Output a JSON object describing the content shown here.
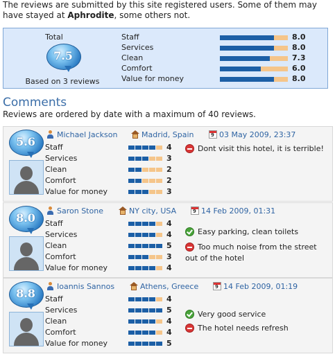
{
  "intro": {
    "text_before": "The reviews are submitted by this site registered users. Some of them may have stayed at ",
    "hotel": "Aphrodite",
    "text_after": ", some others not."
  },
  "summary": {
    "total_label": "Total",
    "total_score": "7.5",
    "based_on": "Based on 3 reviews",
    "criteria": [
      {
        "label": "Staff",
        "value": "8.0",
        "ratio": 0.8
      },
      {
        "label": "Services",
        "value": "8.0",
        "ratio": 0.8
      },
      {
        "label": "Clean",
        "value": "7.3",
        "ratio": 0.73
      },
      {
        "label": "Comfort",
        "value": "6.0",
        "ratio": 0.6
      },
      {
        "label": "Value for money",
        "value": "8.0",
        "ratio": 0.8
      }
    ]
  },
  "comments": {
    "title": "Comments",
    "subtitle": "Reviews are ordered by date with a maximum of 40 reviews."
  },
  "reviews": [
    {
      "score": "5.6",
      "user": "Michael Jackson",
      "location": "Madrid, Spain",
      "date": "03 May 2009, 23:37",
      "criteria": [
        {
          "label": "Staff",
          "value": "4"
        },
        {
          "label": "Services",
          "value": "3"
        },
        {
          "label": "Clean",
          "value": "2"
        },
        {
          "label": "Comfort",
          "value": "2"
        },
        {
          "label": "Value for money",
          "value": "3"
        }
      ],
      "comments": [
        {
          "type": "negative",
          "text": "Dont visit this hotel, it is terrible!"
        }
      ]
    },
    {
      "score": "8.0",
      "user": "Saron Stone",
      "location": "NY city, USA",
      "date": "14 Feb 2009, 01:31",
      "criteria": [
        {
          "label": "Staff",
          "value": "4"
        },
        {
          "label": "Services",
          "value": "4"
        },
        {
          "label": "Clean",
          "value": "5"
        },
        {
          "label": "Comfort",
          "value": "3"
        },
        {
          "label": "Value for money",
          "value": "4"
        }
      ],
      "comments": [
        {
          "type": "positive",
          "text": "Easy parking, clean toilets"
        },
        {
          "type": "negative",
          "text": "Too much noise from the street out of the hotel"
        }
      ]
    },
    {
      "score": "8.8",
      "user": "Ioannis Sannos",
      "location": "Athens, Greece",
      "date": "14 Feb 2009, 01:19",
      "criteria": [
        {
          "label": "Staff",
          "value": "4"
        },
        {
          "label": "Services",
          "value": "5"
        },
        {
          "label": "Clean",
          "value": "4"
        },
        {
          "label": "Comfort",
          "value": "4"
        },
        {
          "label": "Value for money",
          "value": "5"
        }
      ],
      "comments": [
        {
          "type": "positive",
          "text": "Very good service"
        },
        {
          "type": "negative",
          "text": "The hotel needs refresh"
        }
      ]
    }
  ]
}
